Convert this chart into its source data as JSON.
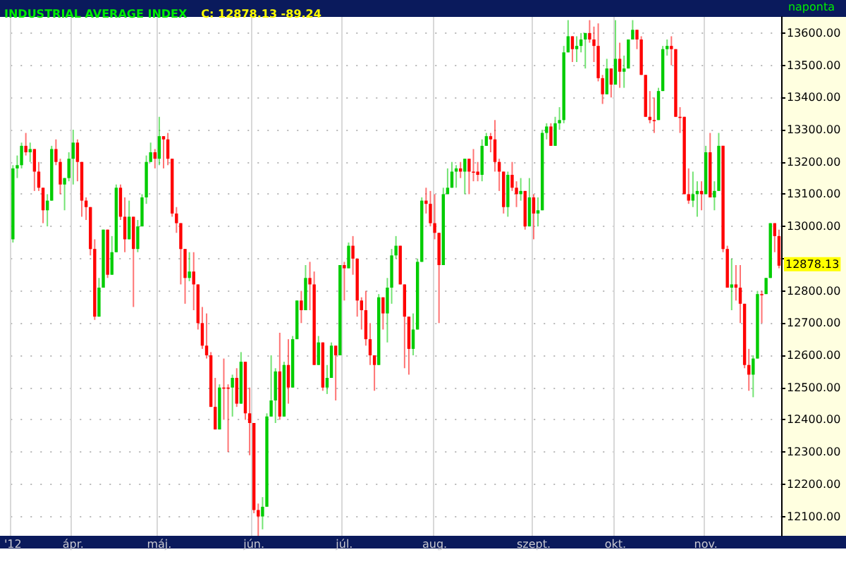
{
  "chart_data": {
    "type": "candlestick",
    "title": "INDUSTRIAL AVERAGE INDEX",
    "subtitle": "C: 12878.13 -89.24",
    "annotations": [
      "naponta",
      "12878.13"
    ],
    "categories": [
      "'12",
      null,
      null,
      null,
      null,
      null,
      null,
      null,
      null,
      null,
      null,
      null,
      null,
      null,
      "ápr.",
      null,
      null,
      null,
      null,
      null,
      null,
      null,
      null,
      null,
      null,
      null,
      null,
      null,
      null,
      null,
      null,
      null,
      null,
      null,
      "máj.",
      null,
      null,
      null,
      null,
      null,
      null,
      null,
      null,
      null,
      null,
      null,
      null,
      null,
      null,
      null,
      null,
      null,
      null,
      null,
      null,
      null,
      "jún.",
      null,
      null,
      null,
      null,
      null,
      null,
      null,
      null,
      null,
      null,
      null,
      null,
      null,
      null,
      null,
      null,
      null,
      null,
      null,
      null,
      "júl.",
      null,
      null,
      null,
      null,
      null,
      null,
      null,
      null,
      null,
      null,
      null,
      null,
      null,
      null,
      null,
      null,
      null,
      null,
      null,
      null,
      "aug.",
      null,
      null,
      null,
      null,
      null,
      null,
      null,
      null,
      null,
      null,
      null,
      null,
      null,
      null,
      null,
      null,
      null,
      null,
      null,
      null,
      null,
      null,
      "szept.",
      null,
      null,
      null,
      null,
      null,
      null,
      null,
      null,
      null,
      null,
      null,
      null,
      null,
      null,
      null,
      null,
      null,
      null,
      "okt.",
      null,
      null,
      null,
      null,
      null,
      null,
      null,
      null,
      null,
      null,
      null,
      null,
      null,
      null,
      null,
      null,
      null,
      null,
      null,
      null,
      "nov.",
      null,
      null,
      null,
      null,
      null,
      null,
      null,
      null,
      null,
      null,
      null,
      null,
      null,
      null,
      null,
      null,
      null
    ],
    "ohlc": [
      [
        12960,
        13190,
        12950,
        13180
      ],
      [
        13180,
        13220,
        13150,
        13190
      ],
      [
        13190,
        13260,
        13180,
        13250
      ],
      [
        13250,
        13290,
        13220,
        13230
      ],
      [
        13230,
        13260,
        13200,
        13240
      ],
      [
        13240,
        13240,
        13110,
        13170
      ],
      [
        13170,
        13200,
        13110,
        13120
      ],
      [
        13120,
        13120,
        13010,
        13050
      ],
      [
        13050,
        13100,
        13000,
        13080
      ],
      [
        13080,
        13250,
        13080,
        13240
      ],
      [
        13240,
        13270,
        13190,
        13200
      ],
      [
        13200,
        13210,
        13100,
        13130
      ],
      [
        13130,
        13150,
        13050,
        13150
      ],
      [
        13150,
        13230,
        13140,
        13210
      ],
      [
        13210,
        13300,
        13130,
        13260
      ],
      [
        13260,
        13270,
        13140,
        13200
      ],
      [
        13200,
        13200,
        13030,
        13080
      ],
      [
        13080,
        13090,
        13020,
        13060
      ],
      [
        13060,
        13060,
        12910,
        12930
      ],
      [
        12930,
        12960,
        12710,
        12720
      ],
      [
        12720,
        12840,
        12720,
        12810
      ],
      [
        12810,
        12990,
        12810,
        12990
      ],
      [
        12990,
        12990,
        12840,
        12850
      ],
      [
        12850,
        12970,
        12850,
        12920
      ],
      [
        12920,
        13130,
        12920,
        13120
      ],
      [
        13120,
        13130,
        13020,
        13030
      ],
      [
        13030,
        13090,
        12920,
        12960
      ],
      [
        12960,
        13080,
        12960,
        13030
      ],
      [
        13030,
        13030,
        12750,
        12930
      ],
      [
        12930,
        13020,
        12920,
        13000
      ],
      [
        13000,
        13100,
        13000,
        13090
      ],
      [
        13090,
        13220,
        13070,
        13200
      ],
      [
        13200,
        13260,
        13200,
        13230
      ],
      [
        13230,
        13240,
        13180,
        13210
      ],
      [
        13210,
        13340,
        13190,
        13280
      ],
      [
        13280,
        13280,
        13180,
        13270
      ],
      [
        13270,
        13290,
        13190,
        13210
      ],
      [
        13210,
        13210,
        13030,
        13040
      ],
      [
        13040,
        13060,
        12980,
        13010
      ],
      [
        13010,
        13010,
        12820,
        12930
      ],
      [
        12930,
        12930,
        12760,
        12840
      ],
      [
        12840,
        12920,
        12830,
        12860
      ],
      [
        12860,
        12920,
        12740,
        12820
      ],
      [
        12820,
        12820,
        12680,
        12700
      ],
      [
        12700,
        12750,
        12620,
        12630
      ],
      [
        12630,
        12730,
        12590,
        12600
      ],
      [
        12600,
        12610,
        12440,
        12440
      ],
      [
        12440,
        12530,
        12370,
        12370
      ],
      [
        12370,
        12510,
        12370,
        12500
      ],
      [
        12500,
        12590,
        12400,
        12500
      ],
      [
        12500,
        12510,
        12300,
        12500
      ],
      [
        12500,
        12540,
        12410,
        12530
      ],
      [
        12530,
        12560,
        12440,
        12450
      ],
      [
        12450,
        12610,
        12450,
        12580
      ],
      [
        12580,
        12580,
        12400,
        12420
      ],
      [
        12420,
        12500,
        12290,
        12390
      ],
      [
        12390,
        12390,
        12110,
        12120
      ],
      [
        12120,
        12140,
        12040,
        12100
      ],
      [
        12100,
        12160,
        12060,
        12130
      ],
      [
        12130,
        12420,
        12130,
        12410
      ],
      [
        12410,
        12600,
        12410,
        12460
      ],
      [
        12460,
        12560,
        12390,
        12550
      ],
      [
        12550,
        12670,
        12400,
        12410
      ],
      [
        12410,
        12580,
        12410,
        12570
      ],
      [
        12570,
        12650,
        12450,
        12500
      ],
      [
        12500,
        12660,
        12500,
        12650
      ],
      [
        12650,
        12770,
        12650,
        12770
      ],
      [
        12770,
        12800,
        12700,
        12740
      ],
      [
        12740,
        12880,
        12740,
        12840
      ],
      [
        12840,
        12890,
        12740,
        12820
      ],
      [
        12820,
        12860,
        12570,
        12570
      ],
      [
        12570,
        12660,
        12570,
        12640
      ],
      [
        12640,
        12640,
        12490,
        12500
      ],
      [
        12500,
        12570,
        12480,
        12530
      ],
      [
        12530,
        12640,
        12530,
        12630
      ],
      [
        12630,
        12630,
        12460,
        12600
      ],
      [
        12600,
        12880,
        12600,
        12880
      ],
      [
        12880,
        12890,
        12770,
        12870
      ],
      [
        12870,
        12950,
        12870,
        12940
      ],
      [
        12940,
        12970,
        12850,
        12900
      ],
      [
        12900,
        12900,
        12720,
        12770
      ],
      [
        12770,
        12780,
        12680,
        12740
      ],
      [
        12740,
        12800,
        12630,
        12650
      ],
      [
        12650,
        12700,
        12570,
        12600
      ],
      [
        12600,
        12600,
        12490,
        12570
      ],
      [
        12570,
        12790,
        12570,
        12780
      ],
      [
        12780,
        12780,
        12680,
        12730
      ],
      [
        12730,
        12840,
        12640,
        12810
      ],
      [
        12810,
        12930,
        12760,
        12910
      ],
      [
        12910,
        12970,
        12900,
        12940
      ],
      [
        12940,
        12940,
        12820,
        12820
      ],
      [
        12820,
        12820,
        12560,
        12720
      ],
      [
        12720,
        12720,
        12540,
        12620
      ],
      [
        12620,
        12730,
        12600,
        12680
      ],
      [
        12680,
        12900,
        12680,
        12890
      ],
      [
        12890,
        13090,
        12890,
        13080
      ],
      [
        13080,
        13120,
        13040,
        13070
      ],
      [
        13070,
        13110,
        13000,
        13010
      ],
      [
        13010,
        13100,
        12960,
        12980
      ],
      [
        12980,
        12980,
        12700,
        12880
      ],
      [
        12880,
        13120,
        12880,
        13100
      ],
      [
        13100,
        13180,
        13100,
        13120
      ],
      [
        13120,
        13200,
        13120,
        13170
      ],
      [
        13170,
        13190,
        13120,
        13180
      ],
      [
        13180,
        13200,
        13150,
        13170
      ],
      [
        13170,
        13210,
        13100,
        13210
      ],
      [
        13210,
        13210,
        13100,
        13170
      ],
      [
        13170,
        13240,
        13140,
        13170
      ],
      [
        13170,
        13200,
        13140,
        13160
      ],
      [
        13160,
        13270,
        13140,
        13250
      ],
      [
        13250,
        13290,
        13250,
        13280
      ],
      [
        13280,
        13290,
        13230,
        13270
      ],
      [
        13270,
        13330,
        13170,
        13200
      ],
      [
        13200,
        13210,
        13110,
        13170
      ],
      [
        13170,
        13170,
        13040,
        13060
      ],
      [
        13060,
        13170,
        13030,
        13160
      ],
      [
        13160,
        13200,
        13110,
        13120
      ],
      [
        13120,
        13140,
        13060,
        13100
      ],
      [
        13100,
        13150,
        13080,
        13110
      ],
      [
        13110,
        13110,
        12990,
        13000
      ],
      [
        13000,
        13150,
        13000,
        13090
      ],
      [
        13090,
        13100,
        12960,
        13040
      ],
      [
        13040,
        13090,
        13000,
        13050
      ],
      [
        13050,
        13300,
        13050,
        13290
      ],
      [
        13290,
        13320,
        13270,
        13310
      ],
      [
        13310,
        13320,
        13250,
        13250
      ],
      [
        13250,
        13340,
        13250,
        13320
      ],
      [
        13320,
        13370,
        13300,
        13330
      ],
      [
        13330,
        13560,
        13320,
        13540
      ],
      [
        13540,
        13640,
        13540,
        13590
      ],
      [
        13590,
        13590,
        13510,
        13550
      ],
      [
        13550,
        13590,
        13510,
        13560
      ],
      [
        13560,
        13600,
        13540,
        13580
      ],
      [
        13580,
        13600,
        13490,
        13600
      ],
      [
        13600,
        13640,
        13570,
        13580
      ],
      [
        13580,
        13620,
        13510,
        13560
      ],
      [
        13560,
        13630,
        13450,
        13460
      ],
      [
        13460,
        13470,
        13380,
        13410
      ],
      [
        13410,
        13520,
        13410,
        13490
      ],
      [
        13490,
        13490,
        13400,
        13440
      ],
      [
        13440,
        13640,
        13440,
        13520
      ],
      [
        13520,
        13570,
        13430,
        13480
      ],
      [
        13480,
        13530,
        13430,
        13490
      ],
      [
        13490,
        13580,
        13490,
        13580
      ],
      [
        13580,
        13640,
        13580,
        13610
      ],
      [
        13610,
        13610,
        13550,
        13580
      ],
      [
        13580,
        13590,
        13470,
        13470
      ],
      [
        13470,
        13470,
        13340,
        13340
      ],
      [
        13340,
        13420,
        13320,
        13330
      ],
      [
        13330,
        13400,
        13290,
        13330
      ],
      [
        13330,
        13430,
        13330,
        13420
      ],
      [
        13420,
        13560,
        13420,
        13550
      ],
      [
        13550,
        13580,
        13530,
        13560
      ],
      [
        13560,
        13590,
        13500,
        13550
      ],
      [
        13550,
        13550,
        13340,
        13340
      ],
      [
        13340,
        13370,
        13290,
        13340
      ],
      [
        13340,
        13340,
        13100,
        13100
      ],
      [
        13100,
        13180,
        13070,
        13080
      ],
      [
        13080,
        13170,
        13060,
        13100
      ],
      [
        13100,
        13140,
        13030,
        13110
      ],
      [
        13110,
        13140,
        13050,
        13100
      ],
      [
        13100,
        13250,
        13100,
        13230
      ],
      [
        13230,
        13290,
        13090,
        13090
      ],
      [
        13090,
        13140,
        13050,
        13110
      ],
      [
        13110,
        13290,
        13110,
        13250
      ],
      [
        13250,
        13250,
        12920,
        12930
      ],
      [
        12930,
        12940,
        12810,
        12810
      ],
      [
        12810,
        12900,
        12740,
        12820
      ],
      [
        12820,
        12880,
        12770,
        12810
      ],
      [
        12810,
        12880,
        12700,
        12760
      ],
      [
        12760,
        12760,
        12560,
        12570
      ],
      [
        12570,
        12620,
        12490,
        12540
      ],
      [
        12540,
        12600,
        12470,
        12590
      ],
      [
        12590,
        12800,
        12590,
        12790
      ],
      [
        12790,
        12800,
        12700,
        12790
      ],
      [
        12790,
        12840,
        12790,
        12840
      ],
      [
        12840,
        13010,
        12840,
        13010
      ],
      [
        13010,
        13010,
        12920,
        12970
      ],
      [
        12970,
        12990,
        12870,
        12878.13
      ]
    ],
    "ylim": [
      12040,
      13650
    ],
    "yticks": [
      {
        "value": 12100,
        "label": "12100.00"
      },
      {
        "value": 12200,
        "label": "12200.00"
      },
      {
        "value": 12300,
        "label": "12300.00"
      },
      {
        "value": 12400,
        "label": "12400.00"
      },
      {
        "value": 12500,
        "label": "12500.00"
      },
      {
        "value": 12600,
        "label": "12600.00"
      },
      {
        "value": 12700,
        "label": "12700.00"
      },
      {
        "value": 12800,
        "label": "12800.00"
      },
      {
        "value": 12900,
        "label": null
      },
      {
        "value": 13000,
        "label": "13000.00"
      },
      {
        "value": 13100,
        "label": "13100.00"
      },
      {
        "value": 13200,
        "label": "13200.00"
      },
      {
        "value": 13300,
        "label": "13300.00"
      },
      {
        "value": 13400,
        "label": "13400.00"
      },
      {
        "value": 13500,
        "label": "13500.00"
      },
      {
        "value": 13600,
        "label": "13600.00"
      }
    ],
    "grid": true
  }
}
